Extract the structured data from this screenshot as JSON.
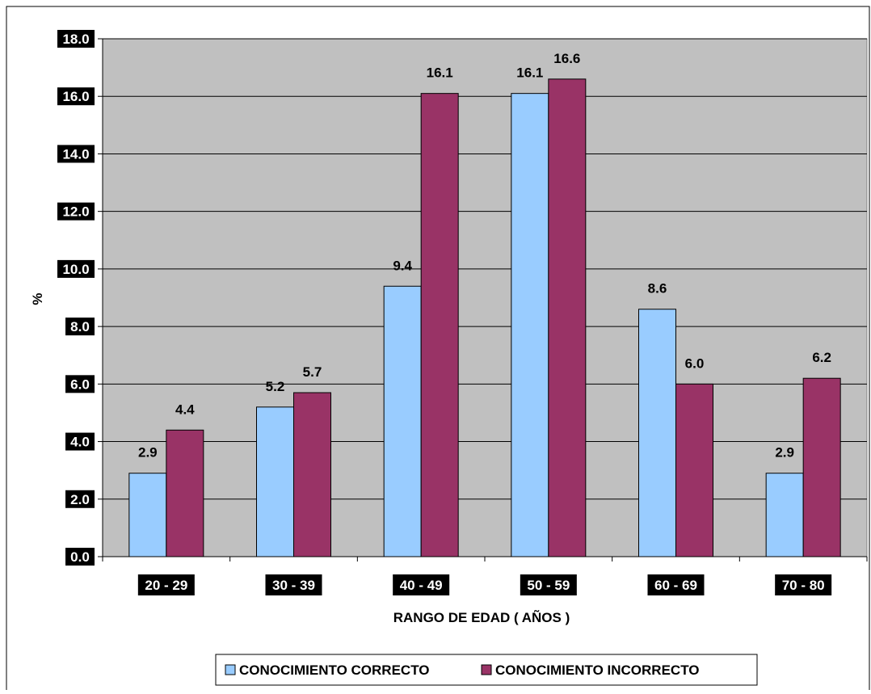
{
  "chart_data": {
    "type": "bar",
    "categories": [
      "20 - 29",
      "30 - 39",
      "40 - 49",
      "50 - 59",
      "60 - 69",
      "70 - 80"
    ],
    "series": [
      {
        "name": "CONOCIMIENTO CORRECTO",
        "values": [
          2.9,
          5.2,
          9.4,
          16.1,
          8.6,
          2.9
        ],
        "color": "#99ccff"
      },
      {
        "name": "CONOCIMIENTO INCORRECTO",
        "values": [
          4.4,
          5.7,
          16.1,
          16.6,
          6.0,
          6.2
        ],
        "color": "#993366"
      }
    ],
    "value_labels": [
      [
        "2.9",
        "5.2",
        "9.4",
        "16.1",
        "8.6",
        "2.9"
      ],
      [
        "4.4",
        "5.7",
        "16.1",
        "16.6",
        "6.0",
        "6.2"
      ]
    ],
    "yticks": [
      "0.0",
      "2.0",
      "4.0",
      "6.0",
      "8.0",
      "10.0",
      "12.0",
      "14.0",
      "16.0",
      "18.0"
    ],
    "ylim": [
      0,
      18
    ],
    "ylabel": "%",
    "xlabel": "RANGO DE EDAD ( AÑOS )",
    "title": "",
    "grid": true,
    "legend_position": "bottom",
    "plot_background": "#c0c0c0"
  }
}
